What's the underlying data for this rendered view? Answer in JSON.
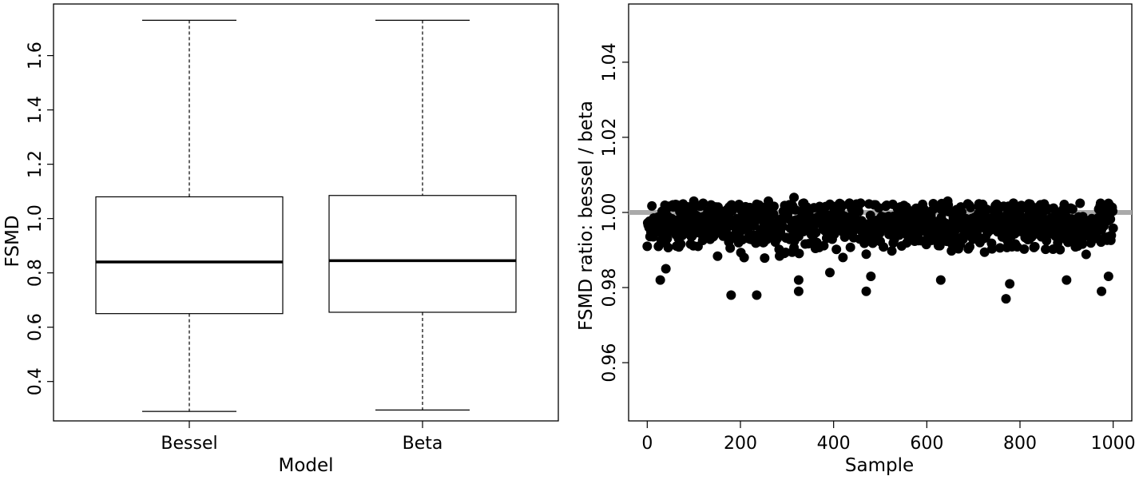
{
  "chart_data": [
    {
      "type": "boxplot",
      "xlabel": "Model",
      "ylabel": "FSMD",
      "ylim": [
        0.255,
        1.79
      ],
      "yticks": [
        "0.4",
        "0.6",
        "0.8",
        "1.0",
        "1.2",
        "1.4",
        "1.6"
      ],
      "categories": [
        "Bessel",
        "Beta"
      ],
      "boxes": [
        {
          "name": "Bessel",
          "whisker_low": 0.29,
          "q1": 0.65,
          "median": 0.84,
          "q3": 1.08,
          "whisker_high": 1.73
        },
        {
          "name": "Beta",
          "whisker_low": 0.295,
          "q1": 0.655,
          "median": 0.845,
          "q3": 1.085,
          "whisker_high": 1.73
        }
      ],
      "grid": false,
      "legend": "none"
    },
    {
      "type": "scatter",
      "xlabel": "Sample",
      "ylabel": "FSMD ratio:  bessel / beta",
      "xlim": [
        -40,
        1040
      ],
      "ylim": [
        0.9445,
        1.0555
      ],
      "xticks": [
        "0",
        "200",
        "400",
        "600",
        "800",
        "1000"
      ],
      "yticks": [
        "0.96",
        "0.98",
        "1.00",
        "1.02",
        "1.04"
      ],
      "reference_line": {
        "y": 1.0,
        "color": "#aaaaaa"
      },
      "n_points": 1000,
      "point_color": "#000000",
      "grid": false,
      "legend": "none",
      "notable_points": [
        {
          "x": 0,
          "y": 0.991
        },
        {
          "x": 28,
          "y": 0.982
        },
        {
          "x": 40,
          "y": 0.985
        },
        {
          "x": 100,
          "y": 1.003
        },
        {
          "x": 180,
          "y": 0.978
        },
        {
          "x": 235,
          "y": 0.978
        },
        {
          "x": 260,
          "y": 1.003
        },
        {
          "x": 315,
          "y": 1.004
        },
        {
          "x": 325,
          "y": 0.979
        },
        {
          "x": 325,
          "y": 0.982
        },
        {
          "x": 392,
          "y": 0.984
        },
        {
          "x": 470,
          "y": 0.979
        },
        {
          "x": 480,
          "y": 0.983
        },
        {
          "x": 630,
          "y": 0.982
        },
        {
          "x": 645,
          "y": 1.003
        },
        {
          "x": 770,
          "y": 0.977
        },
        {
          "x": 778,
          "y": 0.981
        },
        {
          "x": 900,
          "y": 0.982
        },
        {
          "x": 975,
          "y": 0.979
        },
        {
          "x": 990,
          "y": 0.983
        }
      ]
    }
  ]
}
